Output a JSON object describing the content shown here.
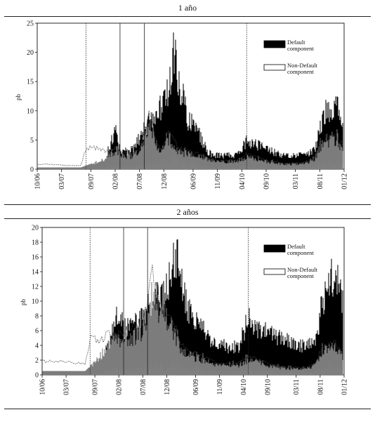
{
  "chart_data": [
    {
      "type": "area",
      "title": "1 año",
      "ylabel": "pb",
      "ylim": [
        0,
        25
      ],
      "yticks": [
        0,
        5,
        10,
        15,
        20,
        25
      ],
      "x_ticks": [
        "10/06",
        "03/07",
        "09/07",
        "02/08",
        "07/08",
        "12/08",
        "06/09",
        "11/09",
        "04/10",
        "09/10",
        "03/11",
        "08/11",
        "01/12"
      ],
      "x_range": [
        "2006-10",
        "2012-01"
      ],
      "vertical_lines": [
        "2007-08",
        "2008-03",
        "2008-08",
        "2010-05"
      ],
      "legend_position": "top-right",
      "series": [
        {
          "name": "Default component",
          "color": "#000000",
          "x": [
            "2006-10",
            "2007-01",
            "2007-04",
            "2007-07",
            "2007-08",
            "2007-10",
            "2007-12",
            "2008-02",
            "2008-03",
            "2008-05",
            "2008-07",
            "2008-09",
            "2008-11",
            "2009-01",
            "2009-02",
            "2009-03",
            "2009-05",
            "2009-07",
            "2009-09",
            "2009-11",
            "2010-01",
            "2010-03",
            "2010-05",
            "2010-07",
            "2010-09",
            "2010-11",
            "2011-01",
            "2011-03",
            "2011-05",
            "2011-07",
            "2011-08",
            "2011-09",
            "2011-10",
            "2011-11",
            "2011-12",
            "2012-01"
          ],
          "values": [
            0.3,
            0.3,
            0.3,
            0.3,
            0.6,
            1.2,
            1.8,
            7.5,
            3.5,
            3.0,
            5.5,
            8.5,
            10.5,
            14,
            22,
            16,
            9,
            7,
            3,
            2.5,
            2.5,
            2.5,
            5,
            4.5,
            3.5,
            3,
            2.5,
            2.5,
            2.5,
            3.5,
            7,
            10,
            11,
            12,
            10,
            7
          ]
        },
        {
          "name": "Non-Default component",
          "color": "#ffffff",
          "x": [
            "2006-10",
            "2007-01",
            "2007-04",
            "2007-07",
            "2007-08",
            "2007-10",
            "2007-12",
            "2008-02",
            "2008-03",
            "2008-05",
            "2008-07",
            "2008-09",
            "2008-11",
            "2009-01",
            "2009-02",
            "2009-03",
            "2009-05",
            "2009-07",
            "2009-09",
            "2009-11",
            "2010-01",
            "2010-03",
            "2010-05",
            "2010-07",
            "2010-09",
            "2010-11",
            "2011-01",
            "2011-03",
            "2011-05",
            "2011-07",
            "2011-08",
            "2011-09",
            "2011-10",
            "2011-11",
            "2011-12",
            "2012-01"
          ],
          "values": [
            0.8,
            0.8,
            0.6,
            0.6,
            3.5,
            3.5,
            3.0,
            3.5,
            3.0,
            2.5,
            3.5,
            9.0,
            3.5,
            6,
            5,
            3.5,
            3,
            2.5,
            2,
            1.5,
            1.5,
            1.5,
            2.5,
            2,
            1.5,
            1.2,
            1,
            1,
            1.2,
            2,
            4.5,
            5,
            5.5,
            6,
            4.5,
            4
          ]
        }
      ]
    },
    {
      "type": "area",
      "title": "2 años",
      "ylabel": "pb",
      "ylim": [
        0,
        20
      ],
      "yticks": [
        0,
        2,
        4,
        6,
        8,
        10,
        12,
        14,
        16,
        18,
        20
      ],
      "x_ticks": [
        "10/06",
        "03/07",
        "09/07",
        "02/08",
        "07/08",
        "12/08",
        "06/09",
        "11/09",
        "04/10",
        "09/10",
        "03/11",
        "08/11",
        "01/12"
      ],
      "x_range": [
        "2006-10",
        "2012-01"
      ],
      "vertical_lines": [
        "2007-08",
        "2008-03",
        "2008-08",
        "2010-05"
      ],
      "legend_position": "top-right",
      "series": [
        {
          "name": "Default component",
          "color": "#000000",
          "x": [
            "2006-10",
            "2007-01",
            "2007-04",
            "2007-07",
            "2007-08",
            "2007-10",
            "2007-12",
            "2008-02",
            "2008-03",
            "2008-05",
            "2008-07",
            "2008-09",
            "2008-11",
            "2009-01",
            "2009-02",
            "2009-03",
            "2009-05",
            "2009-07",
            "2009-09",
            "2009-11",
            "2010-01",
            "2010-03",
            "2010-05",
            "2010-07",
            "2010-09",
            "2010-11",
            "2011-01",
            "2011-03",
            "2011-05",
            "2011-07",
            "2011-08",
            "2011-09",
            "2011-10",
            "2011-11",
            "2011-12",
            "2012-01"
          ],
          "values": [
            0.5,
            0.5,
            0.5,
            0.5,
            1.2,
            2.5,
            4.5,
            9.5,
            6.5,
            7,
            8,
            11,
            12,
            14,
            17.5,
            13,
            8.5,
            7,
            5,
            4.5,
            4,
            4,
            8,
            6.5,
            6,
            5.5,
            5,
            4.5,
            4,
            5,
            8.5,
            12,
            13,
            15,
            13,
            9
          ]
        },
        {
          "name": "Non-Default component",
          "color": "#ffffff",
          "x": [
            "2006-10",
            "2007-01",
            "2007-04",
            "2007-07",
            "2007-08",
            "2007-10",
            "2007-12",
            "2008-02",
            "2008-03",
            "2008-05",
            "2008-07",
            "2008-09",
            "2008-11",
            "2009-01",
            "2009-02",
            "2009-03",
            "2009-05",
            "2009-07",
            "2009-09",
            "2009-11",
            "2010-01",
            "2010-03",
            "2010-05",
            "2010-07",
            "2010-09",
            "2010-11",
            "2011-01",
            "2011-03",
            "2011-05",
            "2011-07",
            "2011-08",
            "2011-09",
            "2011-10",
            "2011-11",
            "2011-12",
            "2012-01"
          ],
          "values": [
            1.8,
            1.8,
            1.6,
            1.5,
            4.8,
            4.5,
            5.5,
            5.5,
            5,
            6,
            7,
            13.5,
            9,
            8,
            6,
            4,
            3,
            2.5,
            2,
            1.5,
            1.5,
            1.5,
            2.5,
            2,
            1.5,
            1.2,
            1,
            1,
            1,
            1.5,
            3,
            4,
            4,
            4.5,
            3.5,
            2.5
          ]
        }
      ]
    }
  ]
}
